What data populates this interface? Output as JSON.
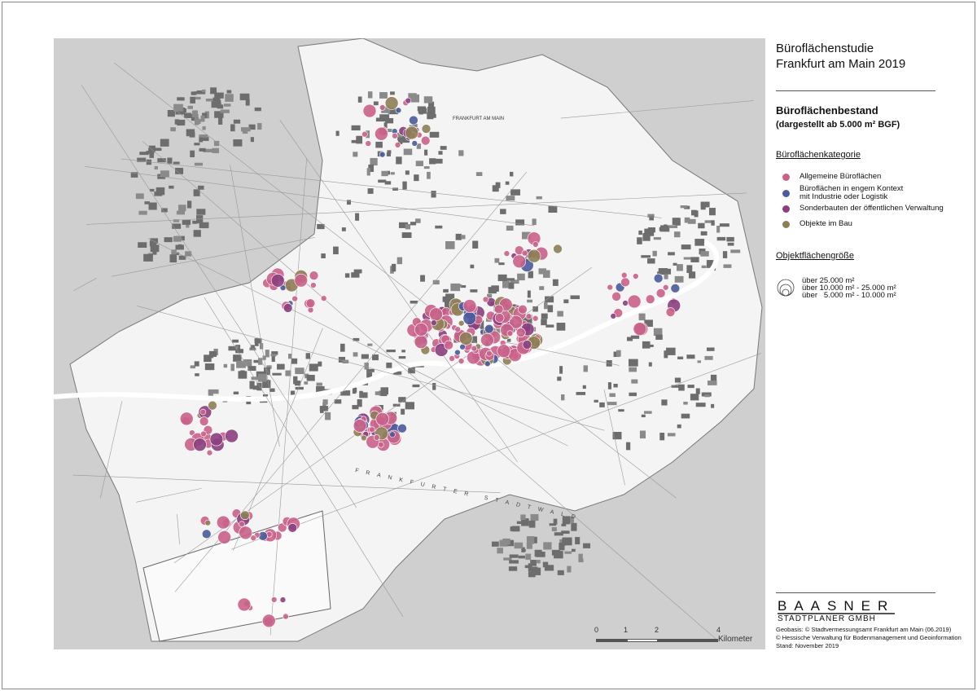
{
  "title": {
    "line1": "Büroflächenstudie",
    "line2": "Frankfurt am Main 2019"
  },
  "heading": {
    "main": "Büroflächenbestand",
    "sub": "(dargestellt ab 5.000 m² BGF)"
  },
  "category_legend": {
    "title": "Büroflächenkategorie",
    "items": [
      {
        "label": "Allgemeine Büroflächen",
        "color": "#c9628a"
      },
      {
        "label": "Büroflächen in engem Kontext",
        "label2": "mit Industrie oder Logistik",
        "color": "#4b5b9b"
      },
      {
        "label": "Sonderbauten der öffentlichen Verwaltung",
        "color": "#8b3f7e"
      },
      {
        "label": "Objekte im Bau",
        "color": "#8e7e55"
      }
    ]
  },
  "size_legend": {
    "title": "Objektflächengröße",
    "items": [
      "über 25.000 m²",
      "über 10.000 m² - 25.000 m²",
      "über   5.000 m² - 10.000 m²"
    ]
  },
  "scale_bar": {
    "ticks": [
      "0",
      "1",
      "2",
      "4"
    ],
    "unit": "Kilometer"
  },
  "logo": {
    "name": "BAASNER",
    "subtitle": "STADTPLANER GMBH"
  },
  "credits": [
    "Geobasis: © Stadtvermessungsamt Frankfurt am Main (06.2019)",
    "© Hessische Verwaltung für Bodenmanagement und Geoinformation",
    "Stand: November 2019"
  ],
  "map_labels": {
    "city": "FRANKFURT AM MAIN",
    "forest": "FRANKFURTER STADTWALD"
  }
}
